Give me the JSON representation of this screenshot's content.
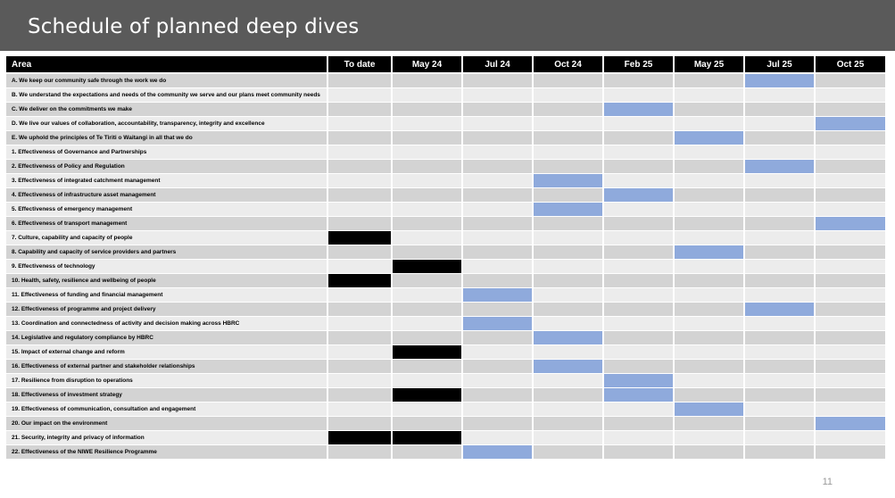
{
  "slide": {
    "title": "Schedule of planned deep dives",
    "page_number": "11"
  },
  "table": {
    "headers": [
      "Area",
      "To date",
      "May 24",
      "Jul 24",
      "Oct 24",
      "Feb 25",
      "May 25",
      "Jul 25",
      "Oct 25"
    ],
    "legend_colors": {
      "planned": "#8faadc",
      "completed": "#000000"
    },
    "rows": [
      {
        "area": "A. We keep our community safe through the work we do",
        "marks": [
          null,
          null,
          null,
          null,
          null,
          null,
          "blue",
          null
        ]
      },
      {
        "area": "B. We understand the expectations and needs of the community we serve and our plans meet community needs",
        "marks": [
          null,
          null,
          null,
          null,
          null,
          null,
          null,
          null
        ]
      },
      {
        "area": "C. We deliver on the commitments we make",
        "marks": [
          null,
          null,
          null,
          null,
          "blue",
          null,
          null,
          null
        ]
      },
      {
        "area": "D. We live our values of collaboration, accountability, transparency, integrity and excellence",
        "marks": [
          null,
          null,
          null,
          null,
          null,
          null,
          null,
          "blue"
        ]
      },
      {
        "area": "E. We uphold the principles of Te Tiriti o Waitangi in all that we do",
        "marks": [
          null,
          null,
          null,
          null,
          null,
          "blue",
          null,
          null
        ]
      },
      {
        "area": "1. Effectiveness of Governance and Partnerships",
        "marks": [
          null,
          null,
          null,
          null,
          null,
          null,
          null,
          null
        ]
      },
      {
        "area": "2. Effectiveness of Policy and Regulation",
        "marks": [
          null,
          null,
          null,
          null,
          null,
          null,
          "blue",
          null
        ]
      },
      {
        "area": "3. Effectiveness of integrated catchment management",
        "marks": [
          null,
          null,
          null,
          "blue",
          null,
          null,
          null,
          null
        ]
      },
      {
        "area": "4. Effectiveness of infrastructure asset management",
        "marks": [
          null,
          null,
          null,
          null,
          "blue",
          null,
          null,
          null
        ]
      },
      {
        "area": "5. Effectiveness of emergency management",
        "marks": [
          null,
          null,
          null,
          "blue",
          null,
          null,
          null,
          null
        ]
      },
      {
        "area": "6. Effectiveness of transport management",
        "marks": [
          null,
          null,
          null,
          null,
          null,
          null,
          null,
          "blue"
        ]
      },
      {
        "area": "7. Culture, capability and capacity of people",
        "marks": [
          "black",
          null,
          null,
          null,
          null,
          null,
          null,
          null
        ]
      },
      {
        "area": "8. Capability and capacity of service providers and partners",
        "marks": [
          null,
          null,
          null,
          null,
          null,
          "blue",
          null,
          null
        ]
      },
      {
        "area": "9. Effectiveness of technology",
        "marks": [
          null,
          "black",
          null,
          null,
          null,
          null,
          null,
          null
        ]
      },
      {
        "area": "10. Health, safety, resilience and wellbeing of people",
        "marks": [
          "black",
          null,
          null,
          null,
          null,
          null,
          null,
          null
        ]
      },
      {
        "area": "11. Effectiveness of funding and financial management",
        "marks": [
          null,
          null,
          "blue",
          null,
          null,
          null,
          null,
          null
        ]
      },
      {
        "area": "12. Effectiveness of programme and project delivery",
        "marks": [
          null,
          null,
          null,
          null,
          null,
          null,
          "blue",
          null
        ]
      },
      {
        "area": "13. Coordination and connectedness of activity and decision making across HBRC",
        "marks": [
          null,
          null,
          "blue",
          null,
          null,
          null,
          null,
          null
        ]
      },
      {
        "area": "14. Legislative and regulatory compliance by HBRC",
        "marks": [
          null,
          null,
          null,
          "blue",
          null,
          null,
          null,
          null
        ]
      },
      {
        "area": "15. Impact of external change and reform",
        "marks": [
          null,
          "black",
          null,
          null,
          null,
          null,
          null,
          null
        ]
      },
      {
        "area": "16. Effectiveness of external partner and stakeholder relationships",
        "marks": [
          null,
          null,
          null,
          "blue",
          null,
          null,
          null,
          null
        ]
      },
      {
        "area": "17. Resilience from disruption to operations",
        "marks": [
          null,
          null,
          null,
          null,
          "blue",
          null,
          null,
          null
        ]
      },
      {
        "area": "18. Effectiveness of investment strategy",
        "marks": [
          null,
          "black",
          null,
          null,
          "blue",
          null,
          null,
          null
        ]
      },
      {
        "area": "19. Effectiveness of communication, consultation and engagement",
        "marks": [
          null,
          null,
          null,
          null,
          null,
          "blue",
          null,
          null
        ]
      },
      {
        "area": "20. Our impact on the environment",
        "marks": [
          null,
          null,
          null,
          null,
          null,
          null,
          null,
          "blue"
        ]
      },
      {
        "area": "21. Security, integrity and privacy of information",
        "marks": [
          "black",
          "black",
          null,
          null,
          null,
          null,
          null,
          null
        ]
      },
      {
        "area": "22. Effectiveness of the NIWE Resilience Programme",
        "marks": [
          null,
          null,
          "blue",
          null,
          null,
          null,
          null,
          null
        ]
      }
    ]
  }
}
